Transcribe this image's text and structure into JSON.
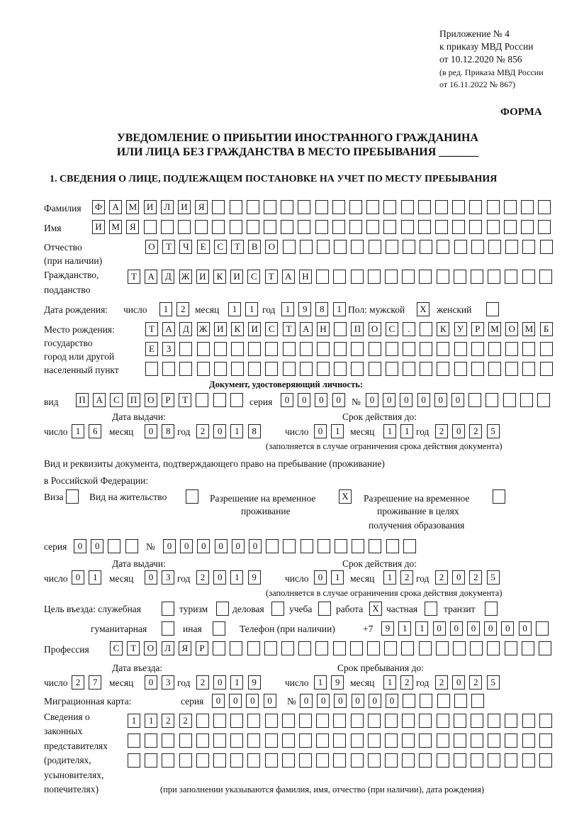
{
  "header": {
    "line1": "Приложение № 4",
    "line2": "к приказу МВД России",
    "line3": "от 10.12.2020 № 856",
    "line4": "(в ред. Приказа МВД России",
    "line5": "от 16.11.2022 № 867)",
    "forma": "ФОРМА"
  },
  "title": {
    "line1": "УВЕДОМЛЕНИЕ О ПРИБЫТИИ ИНОСТРАННОГО ГРАЖДАНИНА",
    "line2": "ИЛИ ЛИЦА БЕЗ ГРАЖДАНСТВА В МЕСТО ПРЕБЫВАНИЯ _______"
  },
  "section1": "1. СВЕДЕНИЯ О ЛИЦЕ, ПОДЛЕЖАЩЕМ ПОСТАНОВКЕ НА УЧЕТ ПО МЕСТУ ПРЕБЫВАНИЯ",
  "labels": {
    "surname": "Фамилия",
    "name": "Имя",
    "patronymic": "Отчество",
    "patronymic2": "(при наличии)",
    "citizenship": "Гражданство,",
    "citizenship2": "подданство",
    "birth_date": "Дата рождения:",
    "day": "число",
    "month": "месяц",
    "year": "год",
    "sex": "Пол: мужской",
    "female": "женский",
    "birthplace1": "Место рождения:",
    "birthplace2": "государство",
    "birthplace3": "город или другой",
    "birthplace4": "населенный пункт",
    "id_doc": "Документ, удостоверяющий личность:",
    "kind": "вид",
    "series": "серия",
    "number": "№",
    "issue_date": "Дата выдачи:",
    "valid_until": "Срок действия до:",
    "valid_note": "(заполняется в случае ограничения срока действия документа)",
    "right_doc1": "Вид и реквизиты документа, подтверждающего право на пребывание (проживание)",
    "right_doc2": "в Российской Федерации:",
    "visa": "Виза",
    "residence": "Вид на жительство",
    "temp1": "Разрешение на временное",
    "temp2": "проживание",
    "tempedu1": "Разрешение на временное",
    "tempedu2": "проживание в целях",
    "tempedu3": "получения образования",
    "purpose": "Цель въезда: служебная",
    "tourism": "туризм",
    "business": "деловая",
    "study": "учеба",
    "work": "работа",
    "private": "частная",
    "transit": "транзит",
    "humanitarian": "гуманитарная",
    "other": "иная",
    "phone": "Телефон (при наличии)",
    "phone_prefix": "+7",
    "profession": "Профессия",
    "entry_date": "Дата въезда:",
    "stay_until": "Срок пребывания до:",
    "migcard": "Миграционная карта:",
    "rep1": "Сведения о",
    "rep2": "законных",
    "rep3": "представителях",
    "rep4": "(родителях,",
    "rep5": "усыновителях,",
    "rep6": "попечителях)",
    "rep_note": "(при заполнении указываются фамилия, имя, отчество (при наличии), дата рождения)"
  },
  "fields": {
    "surname": "ФАМИЛИЯ",
    "name": "ИМЯ",
    "patronymic": "ОТЧЕСТВО",
    "citizenship": "ТАДЖИКИСТАН",
    "birth_day": "12",
    "birth_month": "11",
    "birth_year": "1981",
    "male": "X",
    "female": "",
    "birthplace1": "ТАДЖИКИСТАН ПОС. КУРМОМБ",
    "birthplace2": "ЕЗ",
    "birthplace3": "",
    "doc_kind": "ПАСПОРТ",
    "doc_series": "0000",
    "doc_number": "000000",
    "doc_issue_day": "16",
    "doc_issue_month": "08",
    "doc_issue_year": "2018",
    "doc_valid_day": "01",
    "doc_valid_month": "11",
    "doc_valid_year": "2025",
    "visa": "",
    "residence": "",
    "temp": "X",
    "tempedu": "",
    "right_series": "00",
    "right_number": "000000",
    "right_issue_day": "01",
    "right_issue_month": "03",
    "right_issue_year": "2019",
    "right_valid_day": "01",
    "right_valid_month": "12",
    "right_valid_year": "2025",
    "p_service": "",
    "p_tourism": "",
    "p_business": "",
    "p_study": "",
    "p_work": "X",
    "p_private": "",
    "p_transit": "",
    "p_humanitarian": "",
    "p_other": "",
    "phone": "911000000",
    "profession": "СТОЛЯР",
    "entry_day": "27",
    "entry_month": "03",
    "entry_year": "2019",
    "stay_day": "19",
    "stay_month": "12",
    "stay_year": "2025",
    "mig_series": "0000",
    "mig_number": "000000",
    "rep1": "1122",
    "rep2": "",
    "rep3": ""
  }
}
